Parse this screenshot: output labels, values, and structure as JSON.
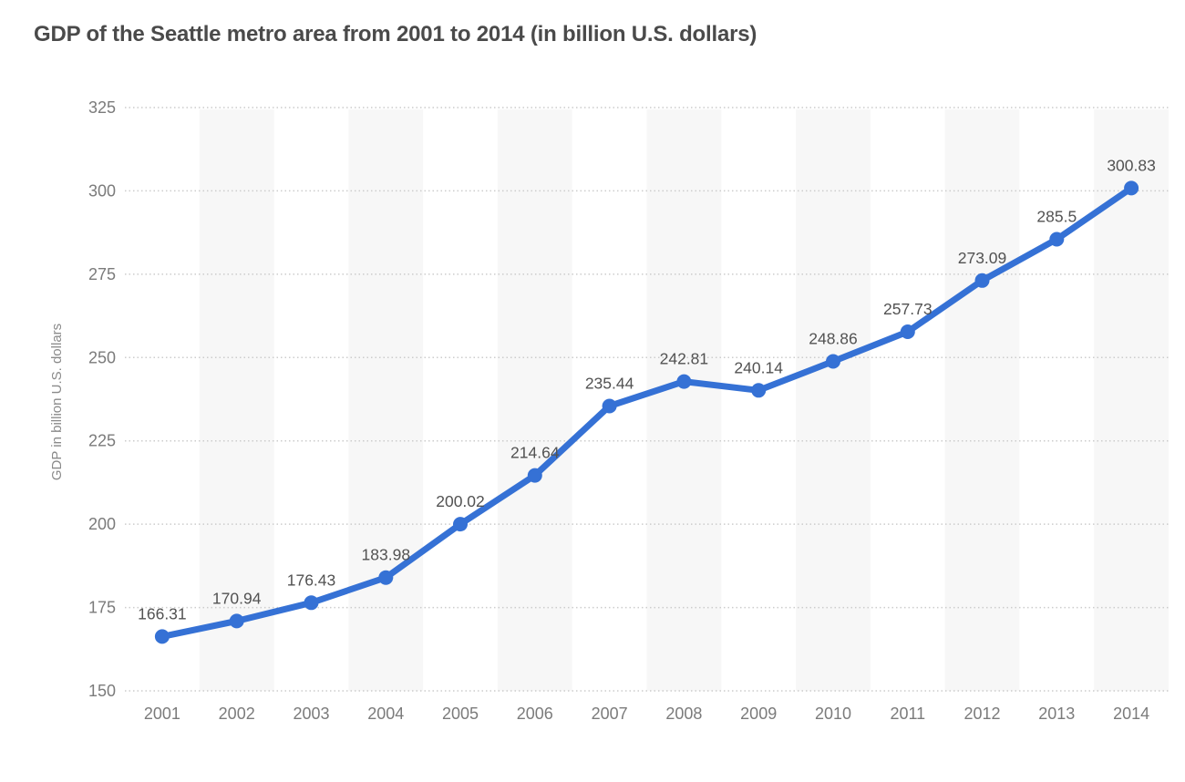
{
  "page": {
    "background": "#ffffff"
  },
  "chart_data": {
    "type": "line",
    "title": "GDP of the Seattle metro area from 2001 to 2014 (in billion U.S. dollars)",
    "xlabel": "",
    "ylabel": "GDP in billion U.S. dollars",
    "categories": [
      "2001",
      "2002",
      "2003",
      "2004",
      "2005",
      "2006",
      "2007",
      "2008",
      "2009",
      "2010",
      "2011",
      "2012",
      "2013",
      "2014"
    ],
    "series": [
      {
        "name": "GDP in billion U.S. dollars",
        "values": [
          166.31,
          170.94,
          176.43,
          183.98,
          200.02,
          214.64,
          235.44,
          242.81,
          240.14,
          248.86,
          257.73,
          273.09,
          285.5,
          300.83
        ],
        "value_labels": [
          "166.31",
          "170.94",
          "176.43",
          "183.98",
          "200.02",
          "214.64",
          "235.44",
          "242.81",
          "240.14",
          "248.86",
          "257.73",
          "273.09",
          "285.5",
          "300.83"
        ]
      }
    ],
    "y_ticks": [
      "150",
      "175",
      "200",
      "225",
      "250",
      "275",
      "300",
      "325"
    ],
    "ylim": [
      150,
      325
    ],
    "grid": "horizontal-dotted",
    "legend": "none",
    "banded_columns": "alternating, shading under even years (2002, 2004, 2006, 2008, 2010, 2012, 2014)",
    "colors": {
      "line": "#3571d5",
      "point": "#3571d5",
      "band": "#f7f7f7",
      "grid": "#cccccc",
      "title": "#4a4a4a",
      "axis_tick_label": "#7b7b7b",
      "data_label": "#525252",
      "y_axis_title": "#8a8a8a",
      "background": "#ffffff"
    }
  }
}
